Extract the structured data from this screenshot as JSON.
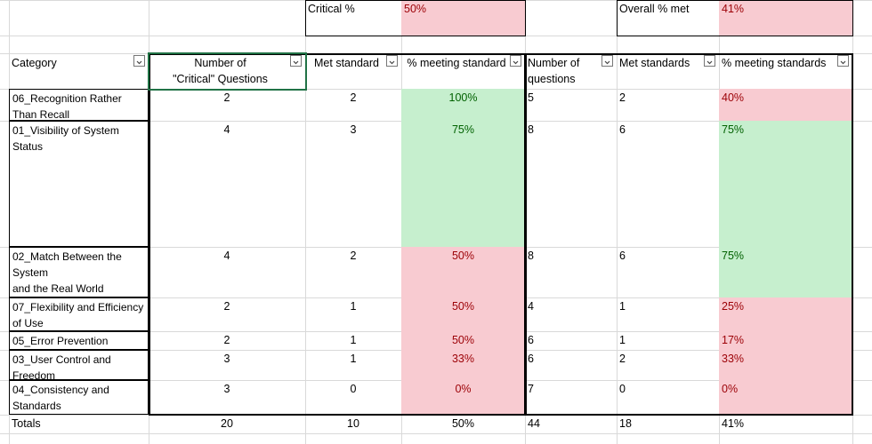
{
  "summary": {
    "critical_label": "Critical %",
    "critical_value": "50%",
    "overall_label": "Overall % met",
    "overall_value": "41%"
  },
  "table": {
    "columns": [
      "Category",
      "Number of\n\"Critical\" Questions",
      "Met standard",
      "% meeting standard",
      "Number of\nquestions",
      "Met standards",
      "% meeting standards"
    ],
    "rows": [
      [
        "06_Recognition Rather Than Recall",
        "2",
        "2",
        "100%",
        "5",
        "2",
        "40%"
      ],
      [
        "01_Visibility of System Status",
        "4",
        "3",
        "75%",
        "8",
        "6",
        "75%"
      ],
      [
        "02_Match Between the System\nand the Real World",
        "4",
        "2",
        "50%",
        "8",
        "6",
        "75%"
      ],
      [
        "07_Flexibility and Efficiency of Use",
        "2",
        "1",
        "50%",
        "4",
        "1",
        "25%"
      ],
      [
        "05_Error Prevention",
        "2",
        "1",
        "50%",
        "6",
        "1",
        "17%"
      ],
      [
        "03_User Control and Freedom",
        "3",
        "1",
        "33%",
        "6",
        "2",
        "33%"
      ],
      [
        "04_Consistency and Standards",
        "3",
        "0",
        "0%",
        "7",
        "0",
        "0%"
      ]
    ],
    "fills": [
      [
        "green",
        "red"
      ],
      [
        "green",
        "green"
      ],
      [
        "red",
        "green"
      ],
      [
        "red",
        "red"
      ],
      [
        "red",
        "red"
      ],
      [
        "red",
        "red"
      ],
      [
        "red",
        "red"
      ]
    ],
    "totals": [
      "Totals",
      "20",
      "10",
      "50%",
      "44",
      "18",
      "41%"
    ]
  },
  "colors": {
    "green": {
      "fill": "#c6efce",
      "text": "#006100"
    },
    "red": {
      "fill": "#f8cbd1",
      "text": "#9c0006"
    }
  }
}
